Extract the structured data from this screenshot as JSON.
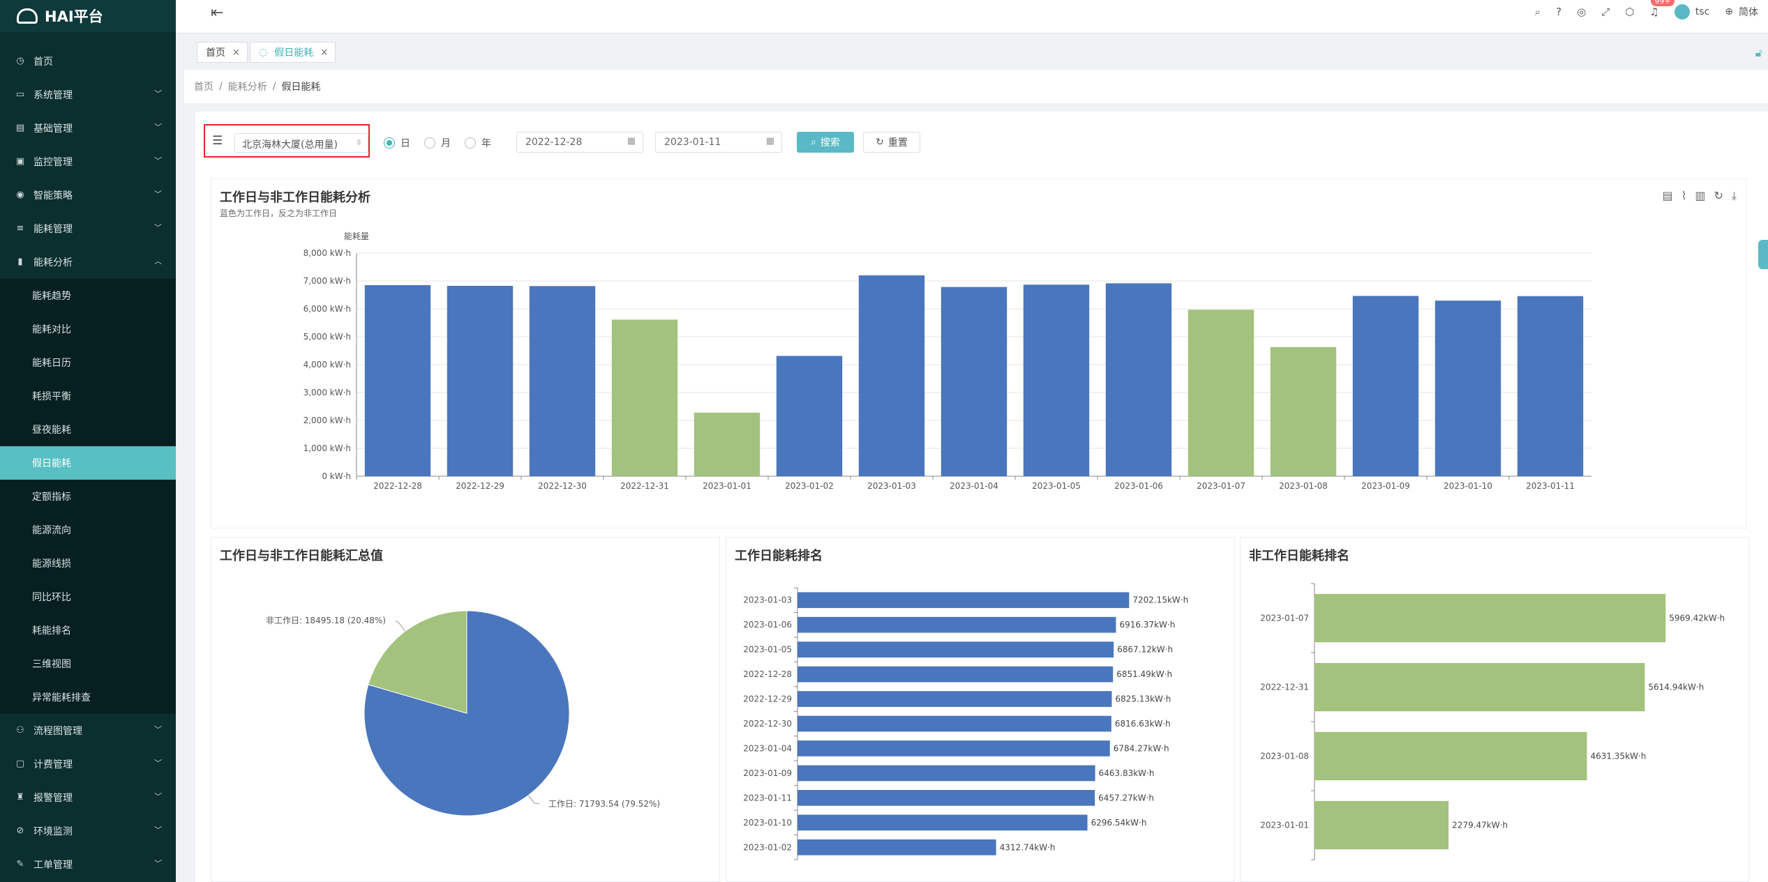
{
  "app": {
    "title": "HAI平台"
  },
  "sidebar": {
    "items_top": [
      {
        "label": "首页",
        "icon": "dashboard-icon",
        "glyph": "◷",
        "arrow": false
      },
      {
        "label": "系统管理",
        "icon": "monitor-icon",
        "glyph": "▭",
        "arrow": true
      },
      {
        "label": "基础管理",
        "icon": "server-icon",
        "glyph": "▤",
        "arrow": true
      },
      {
        "label": "监控管理",
        "icon": "monitor-icon",
        "glyph": "▣",
        "arrow": true
      },
      {
        "label": "智能策略",
        "icon": "location-icon",
        "glyph": "◉",
        "arrow": true
      },
      {
        "label": "能耗管理",
        "icon": "sliders-icon",
        "glyph": "≡",
        "arrow": true
      },
      {
        "label": "能耗分析",
        "icon": "chart-icon",
        "glyph": "▮",
        "arrow": true,
        "open": true
      }
    ],
    "sub_items": [
      "能耗趋势",
      "能耗对比",
      "能耗日历",
      "耗损平衡",
      "昼夜能耗",
      "假日能耗",
      "定额指标",
      "能源流向",
      "能源线损",
      "同比环比",
      "耗能排名",
      "三维视图",
      "异常能耗排查"
    ],
    "active_sub": 5,
    "items_bottom": [
      {
        "label": "流程图管理",
        "icon": "flow-icon",
        "glyph": "⚇"
      },
      {
        "label": "计费管理",
        "icon": "billing-icon",
        "glyph": "▢"
      },
      {
        "label": "报警管理",
        "icon": "alarm-icon",
        "glyph": "♜"
      },
      {
        "label": "环境监测",
        "icon": "environment-icon",
        "glyph": "⊘"
      },
      {
        "label": "工单管理",
        "icon": "workorder-icon",
        "glyph": "✎"
      }
    ]
  },
  "topbar": {
    "badge": "99+",
    "user": "tsc",
    "lang": "简体"
  },
  "tabs": [
    {
      "label": "首页"
    },
    {
      "label": "假日能耗"
    }
  ],
  "breadcrumb": [
    "首页",
    "能耗分析",
    "假日能耗"
  ],
  "filter": {
    "building": "北京海林大厦(总用量)",
    "radios": [
      "日",
      "月",
      "年"
    ],
    "selected_radio": 0,
    "start_date": "2022-12-28",
    "end_date": "2023-01-11",
    "search_label": "搜索",
    "reset_label": "重置"
  },
  "colors": {
    "workday": "#4a76bd",
    "non_workday": "#a3c27d",
    "accent": "#5ab9c5"
  },
  "charts": {
    "bar_title": "工作日与非工作日能耗分析",
    "bar_subtitle": "蓝色为工作日，反之为非工作日",
    "pie_title": "工作日与非工作日能耗汇总值",
    "work_rank_title": "工作日能耗排名",
    "nonwork_rank_title": "非工作日能耗排名"
  },
  "chart_data": [
    {
      "type": "bar",
      "title": "工作日与非工作日能耗分析",
      "ylabel": "能耗量",
      "y_unit": "kW·h",
      "ylim": [
        0,
        8000
      ],
      "yticks": [
        0,
        1000,
        2000,
        3000,
        4000,
        5000,
        6000,
        7000,
        8000
      ],
      "grid": true,
      "categories": [
        "2022-12-28",
        "2022-12-29",
        "2022-12-30",
        "2022-12-31",
        "2023-01-01",
        "2023-01-02",
        "2023-01-03",
        "2023-01-04",
        "2023-01-05",
        "2023-01-06",
        "2023-01-07",
        "2023-01-08",
        "2023-01-09",
        "2023-01-10",
        "2023-01-11"
      ],
      "values": [
        6851.49,
        6825.13,
        6816.63,
        5614.94,
        2279.47,
        4312.74,
        7202.15,
        6784.27,
        6867.12,
        6916.37,
        5969.42,
        4631.35,
        6463.83,
        6296.54,
        6457.27
      ],
      "workday": [
        true,
        true,
        true,
        false,
        false,
        true,
        true,
        true,
        true,
        true,
        false,
        false,
        true,
        true,
        true
      ]
    },
    {
      "type": "pie",
      "title": "工作日与非工作日能耗汇总值",
      "slices": [
        {
          "name": "工作日",
          "value": 71793.54,
          "percent": 79.52,
          "label": "工作日: 71793.54 (79.52%)"
        },
        {
          "name": "非工作日",
          "value": 18495.18,
          "percent": 20.48,
          "label": "非工作日: 18495.18 (20.48%)"
        }
      ]
    },
    {
      "type": "bar",
      "orientation": "horizontal",
      "title": "工作日能耗排名",
      "xlim": [
        0,
        8000
      ],
      "categories": [
        "2023-01-03",
        "2023-01-06",
        "2023-01-05",
        "2022-12-28",
        "2022-12-29",
        "2022-12-30",
        "2023-01-04",
        "2023-01-09",
        "2023-01-11",
        "2023-01-10",
        "2023-01-02"
      ],
      "values": [
        7202.15,
        6916.37,
        6867.12,
        6851.49,
        6825.13,
        6816.63,
        6784.27,
        6463.83,
        6457.27,
        6296.54,
        4312.74
      ],
      "labels": [
        "7202.15kW·h",
        "6916.37kW·h",
        "6867.12kW·h",
        "6851.49kW·h",
        "6825.13kW·h",
        "6816.63kW·h",
        "6784.27kW·h",
        "6463.83kW·h",
        "6457.27kW·h",
        "6296.54kW·h",
        "4312.74kW·h"
      ]
    },
    {
      "type": "bar",
      "orientation": "horizontal",
      "title": "非工作日能耗排名",
      "xlim": [
        0,
        6500
      ],
      "categories": [
        "2023-01-07",
        "2022-12-31",
        "2023-01-08",
        "2023-01-01"
      ],
      "values": [
        5969.42,
        5614.94,
        4631.35,
        2279.47
      ],
      "labels": [
        "5969.42kW·h",
        "5614.94kW·h",
        "4631.35kW·h",
        "2279.47kW·h"
      ]
    }
  ]
}
